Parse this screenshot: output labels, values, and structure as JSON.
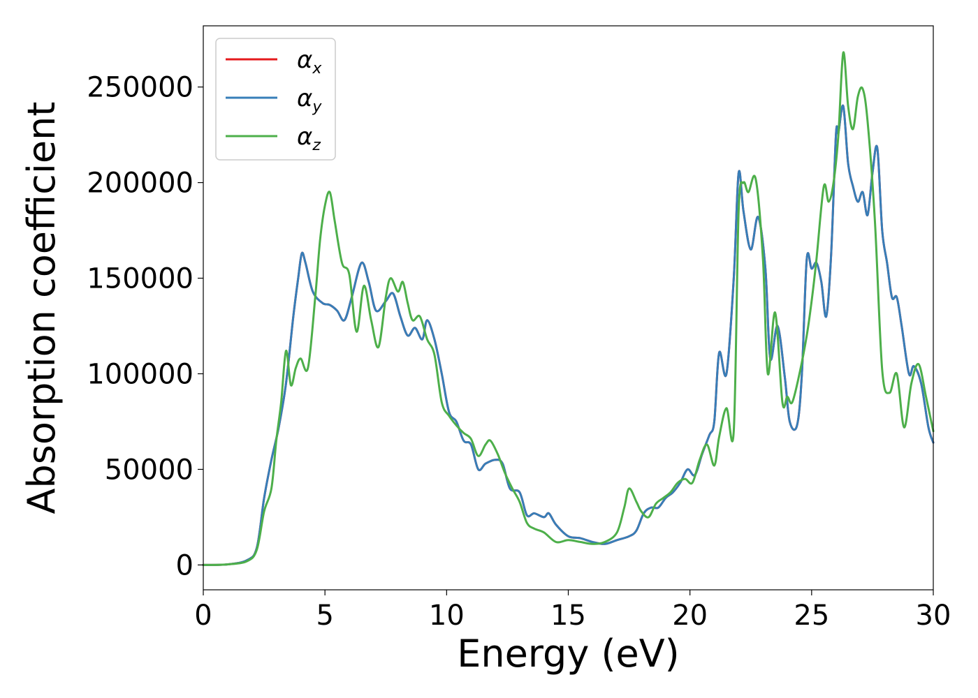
{
  "chart_data": {
    "type": "line",
    "title": "",
    "xlabel": "Energy (eV)",
    "ylabel": "Absorption coefficient",
    "xlim": [
      0,
      30
    ],
    "ylim": [
      -13000,
      282000
    ],
    "xticks": [
      "0",
      "5",
      "10",
      "15",
      "20",
      "25",
      "30"
    ],
    "yticks": [
      "0",
      "50000",
      "100000",
      "150000",
      "200000",
      "250000"
    ],
    "grid": false,
    "legend_position": "top-left",
    "series": [
      {
        "name": "α",
        "sub": "x",
        "color": "#e41a1c",
        "x": [
          0,
          1,
          1.8,
          2.2,
          2.5,
          2.8,
          3.1,
          3.4,
          3.7,
          3.9,
          4.05,
          4.2,
          4.5,
          4.9,
          5.2,
          5.5,
          5.8,
          6.1,
          6.5,
          6.8,
          7.1,
          7.5,
          7.8,
          8.1,
          8.4,
          8.7,
          9.0,
          9.2,
          9.5,
          9.8,
          10.1,
          10.4,
          10.7,
          11.0,
          11.3,
          11.6,
          12.0,
          12.3,
          12.6,
          13.0,
          13.3,
          13.6,
          14.0,
          14.2,
          14.5,
          15.0,
          15.5,
          16.0,
          16.5,
          17.0,
          17.5,
          17.8,
          18.1,
          18.4,
          18.7,
          19.0,
          19.3,
          19.6,
          19.9,
          20.2,
          20.5,
          20.8,
          21.0,
          21.2,
          21.5,
          21.8,
          22.0,
          22.2,
          22.5,
          22.8,
          23.1,
          23.3,
          23.6,
          23.9,
          24.1,
          24.4,
          24.6,
          24.8,
          25.0,
          25.2,
          25.4,
          25.6,
          25.8,
          26.0,
          26.1,
          26.3,
          26.5,
          26.7,
          26.9,
          27.1,
          27.3,
          27.5,
          27.7,
          27.9,
          28.1,
          28.3,
          28.5,
          28.7,
          29.0,
          29.2,
          29.5,
          29.8,
          30.0
        ],
        "y": [
          0,
          300,
          2500,
          9000,
          35000,
          55000,
          72000,
          95000,
          130000,
          150000,
          163000,
          158000,
          143000,
          137000,
          136000,
          133000,
          128000,
          140000,
          158000,
          148000,
          133000,
          138000,
          142000,
          130000,
          120000,
          124000,
          118000,
          128000,
          118000,
          100000,
          80000,
          75000,
          65000,
          63000,
          50000,
          53000,
          55000,
          53000,
          40000,
          38000,
          26000,
          27000,
          25000,
          27000,
          21000,
          15000,
          14000,
          12000,
          11000,
          13000,
          15000,
          18000,
          27000,
          30000,
          30000,
          35000,
          38000,
          43000,
          50000,
          47000,
          58000,
          68000,
          75000,
          111000,
          100000,
          150000,
          205000,
          185000,
          165000,
          182000,
          155000,
          108000,
          125000,
          98000,
          75000,
          73000,
          100000,
          160000,
          155000,
          158000,
          148000,
          130000,
          162000,
          225000,
          226000,
          240000,
          210000,
          198000,
          190000,
          195000,
          183000,
          205000,
          218000,
          175000,
          158000,
          140000,
          140000,
          125000,
          100000,
          104000,
          95000,
          72000,
          64000
        ]
      },
      {
        "name": "α",
        "sub": "y",
        "color": "#377eb8",
        "x": [
          0,
          1,
          1.8,
          2.2,
          2.5,
          2.8,
          3.1,
          3.4,
          3.7,
          3.9,
          4.05,
          4.2,
          4.5,
          4.9,
          5.2,
          5.5,
          5.8,
          6.1,
          6.5,
          6.8,
          7.1,
          7.5,
          7.8,
          8.1,
          8.4,
          8.7,
          9.0,
          9.2,
          9.5,
          9.8,
          10.1,
          10.4,
          10.7,
          11.0,
          11.3,
          11.6,
          12.0,
          12.3,
          12.6,
          13.0,
          13.3,
          13.6,
          14.0,
          14.2,
          14.5,
          15.0,
          15.5,
          16.0,
          16.5,
          17.0,
          17.5,
          17.8,
          18.1,
          18.4,
          18.7,
          19.0,
          19.3,
          19.6,
          19.9,
          20.2,
          20.5,
          20.8,
          21.0,
          21.2,
          21.5,
          21.8,
          22.0,
          22.2,
          22.5,
          22.8,
          23.1,
          23.3,
          23.6,
          23.9,
          24.1,
          24.4,
          24.6,
          24.8,
          25.0,
          25.2,
          25.4,
          25.6,
          25.8,
          26.0,
          26.1,
          26.3,
          26.5,
          26.7,
          26.9,
          27.1,
          27.3,
          27.5,
          27.7,
          27.9,
          28.1,
          28.3,
          28.5,
          28.7,
          29.0,
          29.2,
          29.5,
          29.8,
          30.0
        ],
        "y": [
          0,
          300,
          2500,
          9000,
          35000,
          55000,
          72000,
          95000,
          130000,
          150000,
          163000,
          158000,
          143000,
          137000,
          136000,
          133000,
          128000,
          140000,
          158000,
          148000,
          133000,
          138000,
          142000,
          130000,
          120000,
          124000,
          118000,
          128000,
          118000,
          100000,
          80000,
          75000,
          65000,
          63000,
          50000,
          53000,
          55000,
          53000,
          40000,
          38000,
          26000,
          27000,
          25000,
          27000,
          21000,
          15000,
          14000,
          12000,
          11000,
          13000,
          15000,
          18000,
          27000,
          30000,
          30000,
          35000,
          38000,
          43000,
          50000,
          47000,
          58000,
          68000,
          75000,
          111000,
          100000,
          150000,
          205000,
          185000,
          165000,
          182000,
          155000,
          108000,
          125000,
          98000,
          75000,
          73000,
          100000,
          160000,
          155000,
          158000,
          148000,
          130000,
          162000,
          225000,
          226000,
          240000,
          210000,
          198000,
          190000,
          195000,
          183000,
          205000,
          218000,
          175000,
          158000,
          140000,
          140000,
          125000,
          100000,
          104000,
          95000,
          72000,
          64000
        ]
      },
      {
        "name": "α",
        "sub": "z",
        "color": "#4daf4a",
        "x": [
          0,
          1,
          1.8,
          2.2,
          2.5,
          2.8,
          3.0,
          3.2,
          3.4,
          3.6,
          3.8,
          4.0,
          4.3,
          4.6,
          4.8,
          5.0,
          5.2,
          5.4,
          5.7,
          6.0,
          6.3,
          6.6,
          6.9,
          7.2,
          7.5,
          7.7,
          8.0,
          8.2,
          8.4,
          8.6,
          8.9,
          9.2,
          9.5,
          9.8,
          10.1,
          10.4,
          10.7,
          11.0,
          11.3,
          11.6,
          11.8,
          12.1,
          12.4,
          12.7,
          13.0,
          13.3,
          13.6,
          14.0,
          14.5,
          15.0,
          15.5,
          16.0,
          16.5,
          17.0,
          17.3,
          17.5,
          17.8,
          18.0,
          18.3,
          18.6,
          18.9,
          19.2,
          19.5,
          19.8,
          20.1,
          20.4,
          20.7,
          21.0,
          21.2,
          21.5,
          21.8,
          22.0,
          22.2,
          22.4,
          22.7,
          23.0,
          23.2,
          23.5,
          23.8,
          24.0,
          24.2,
          24.5,
          24.8,
          25.0,
          25.2,
          25.5,
          25.7,
          25.9,
          26.1,
          26.3,
          26.5,
          26.7,
          26.9,
          27.1,
          27.3,
          27.6,
          27.9,
          28.2,
          28.5,
          28.8,
          29.1,
          29.4,
          29.7,
          30.0
        ],
        "y": [
          0,
          300,
          2000,
          8000,
          28000,
          40000,
          65000,
          85000,
          112000,
          94000,
          103000,
          108000,
          103000,
          140000,
          170000,
          188000,
          195000,
          180000,
          158000,
          152000,
          122000,
          146000,
          128000,
          114000,
          140000,
          150000,
          143000,
          148000,
          137000,
          128000,
          130000,
          118000,
          110000,
          85000,
          78000,
          73000,
          69000,
          66000,
          57000,
          63000,
          65000,
          58000,
          48000,
          40000,
          33000,
          22000,
          19000,
          17000,
          12000,
          13000,
          12000,
          11000,
          12000,
          17000,
          30000,
          40000,
          33000,
          28000,
          25000,
          32000,
          35000,
          38000,
          43000,
          45000,
          43000,
          55000,
          63000,
          52000,
          67000,
          82000,
          70000,
          185000,
          200000,
          195000,
          202000,
          160000,
          100000,
          132000,
          85000,
          88000,
          85000,
          100000,
          120000,
          138000,
          160000,
          198000,
          190000,
          200000,
          225000,
          268000,
          240000,
          228000,
          245000,
          249000,
          232000,
          180000,
          102000,
          90000,
          100000,
          72000,
          95000,
          105000,
          88000,
          70000
        ]
      }
    ]
  }
}
